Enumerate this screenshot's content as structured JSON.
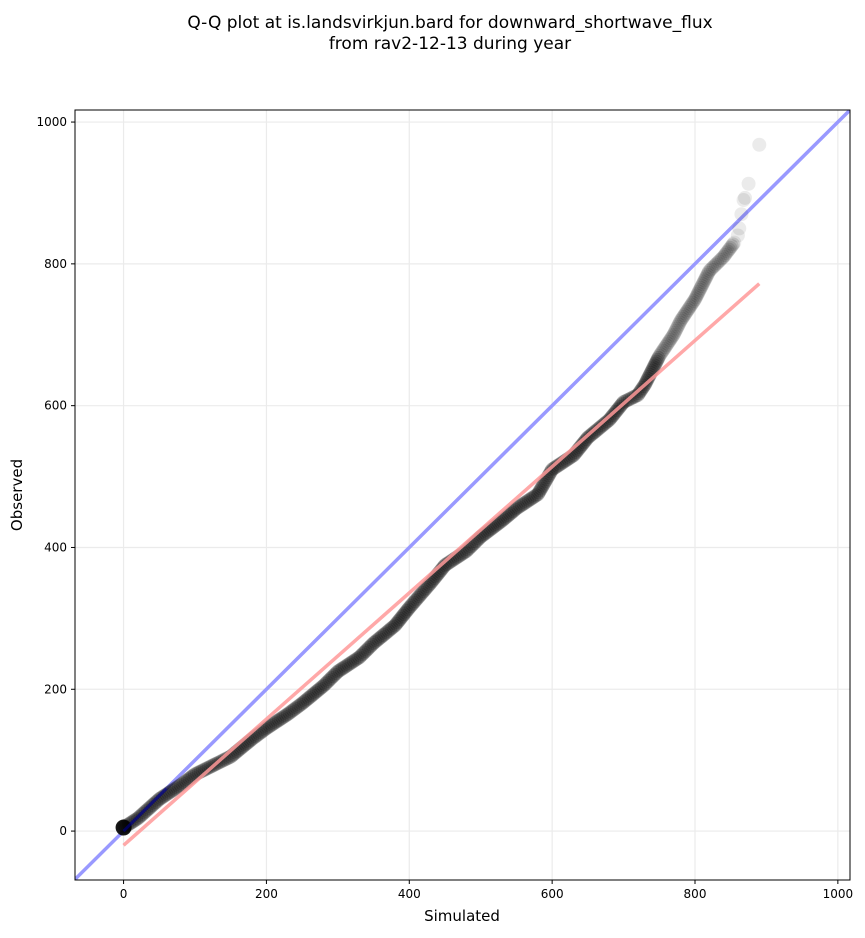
{
  "chart_data": {
    "type": "scatter",
    "title_line1": "Q-Q plot at is.landsvirkjun.bard for downward_shortwave_flux",
    "title_line2": "from rav2-12-13 during year",
    "xlabel": "Simulated",
    "ylabel": "Observed",
    "xlim": [
      -68,
      1017
    ],
    "ylim": [
      -69,
      1017
    ],
    "xticks": [
      0,
      200,
      400,
      600,
      800,
      1000
    ],
    "yticks": [
      0,
      200,
      400,
      600,
      800,
      1000
    ],
    "grid": true,
    "quantile_points": [
      [
        0,
        5
      ],
      [
        20,
        18
      ],
      [
        50,
        45
      ],
      [
        80,
        65
      ],
      [
        100,
        80
      ],
      [
        130,
        95
      ],
      [
        150,
        105
      ],
      [
        180,
        130
      ],
      [
        200,
        145
      ],
      [
        230,
        165
      ],
      [
        250,
        180
      ],
      [
        280,
        205
      ],
      [
        300,
        225
      ],
      [
        330,
        245
      ],
      [
        350,
        265
      ],
      [
        380,
        290
      ],
      [
        400,
        315
      ],
      [
        430,
        350
      ],
      [
        450,
        375
      ],
      [
        480,
        395
      ],
      [
        500,
        415
      ],
      [
        530,
        438
      ],
      [
        550,
        455
      ],
      [
        580,
        475
      ],
      [
        600,
        510
      ],
      [
        630,
        530
      ],
      [
        650,
        555
      ],
      [
        680,
        580
      ],
      [
        700,
        605
      ],
      [
        720,
        615
      ],
      [
        730,
        630
      ],
      [
        750,
        670
      ],
      [
        770,
        700
      ],
      [
        780,
        720
      ],
      [
        800,
        750
      ],
      [
        820,
        790
      ],
      [
        840,
        810
      ],
      [
        855,
        830
      ],
      [
        860,
        840
      ],
      [
        862,
        850
      ],
      [
        865,
        870
      ],
      [
        868,
        890
      ],
      [
        870,
        893
      ],
      [
        875,
        913
      ],
      [
        890,
        968
      ]
    ],
    "fit_line": {
      "name": "fit",
      "color": "#ff9999",
      "points": [
        [
          0,
          -20
        ],
        [
          890,
          772
        ]
      ]
    },
    "identity_line": {
      "name": "y = x",
      "color": "#9999ff",
      "points": [
        [
          -68,
          -68
        ],
        [
          1017,
          1017
        ]
      ]
    }
  }
}
